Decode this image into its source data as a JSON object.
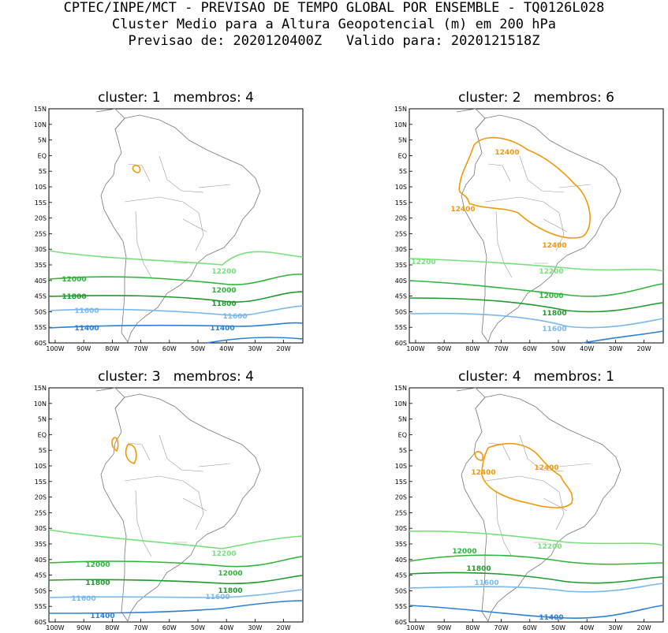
{
  "header": {
    "line1": "CPTEC/INPE/MCT - PREVISAO DE TEMPO GLOBAL POR ENSEMBLE - TQ0126L028",
    "line2": "Cluster Medio para a Altura Geopotencial (m) em 200 hPa",
    "line3": "Previsao de: 2020120400Z   Valido para: 2020121518Z"
  },
  "axes": {
    "lat_labels": [
      "15N",
      "10N",
      "5N",
      "EQ",
      "5S",
      "10S",
      "15S",
      "20S",
      "25S",
      "30S",
      "35S",
      "40S",
      "45S",
      "50S",
      "55S",
      "60S"
    ],
    "lon_labels": [
      "100W",
      "90W",
      "80W",
      "70W",
      "60W",
      "50W",
      "40W",
      "30W",
      "20W"
    ],
    "lat_range": [
      15,
      -60
    ],
    "lon_range": [
      -100,
      -13
    ]
  },
  "colors": {
    "c11400": "#2e7fd6",
    "c11600": "#7ab8f0",
    "c11800": "#1f9a2c",
    "c12000": "#2fb43c",
    "c12200": "#78e07a",
    "c12400": "#f0990a"
  },
  "panels": [
    {
      "title": "cluster: 1   membros: 4",
      "labels": [
        {
          "text": "12200",
          "color": "c12200"
        },
        {
          "text": "12000",
          "color": "c12000"
        },
        {
          "text": "12000",
          "color": "c12000"
        },
        {
          "text": "11800",
          "color": "c11800"
        },
        {
          "text": "11800",
          "color": "c11800"
        },
        {
          "text": "11600",
          "color": "c11600"
        },
        {
          "text": "11600",
          "color": "c11600"
        },
        {
          "text": "11400",
          "color": "c11400"
        },
        {
          "text": "11400",
          "color": "c11400"
        }
      ]
    },
    {
      "title": "cluster: 2   membros: 6",
      "labels": [
        {
          "text": "12400",
          "color": "c12400"
        },
        {
          "text": "12400",
          "color": "c12400"
        },
        {
          "text": "12400",
          "color": "c12400"
        },
        {
          "text": "12200",
          "color": "c12200"
        },
        {
          "text": "12200",
          "color": "c12200"
        },
        {
          "text": "12000",
          "color": "c12000"
        },
        {
          "text": "11800",
          "color": "c11800"
        },
        {
          "text": "11600",
          "color": "c11600"
        }
      ]
    },
    {
      "title": "cluster: 3   membros: 4",
      "labels": [
        {
          "text": "12200",
          "color": "c12200"
        },
        {
          "text": "12000",
          "color": "c12000"
        },
        {
          "text": "12000",
          "color": "c12000"
        },
        {
          "text": "11800",
          "color": "c11800"
        },
        {
          "text": "11800",
          "color": "c11800"
        },
        {
          "text": "11600",
          "color": "c11600"
        },
        {
          "text": "11600",
          "color": "c11600"
        },
        {
          "text": "11400",
          "color": "c11400"
        }
      ]
    },
    {
      "title": "cluster: 4   membros: 1",
      "labels": [
        {
          "text": "12400",
          "color": "c12400"
        },
        {
          "text": "12400",
          "color": "c12400"
        },
        {
          "text": "12200",
          "color": "c12200"
        },
        {
          "text": "12000",
          "color": "c12000"
        },
        {
          "text": "11800",
          "color": "c11800"
        },
        {
          "text": "11600",
          "color": "c11600"
        },
        {
          "text": "11400",
          "color": "c11400"
        }
      ]
    }
  ]
}
